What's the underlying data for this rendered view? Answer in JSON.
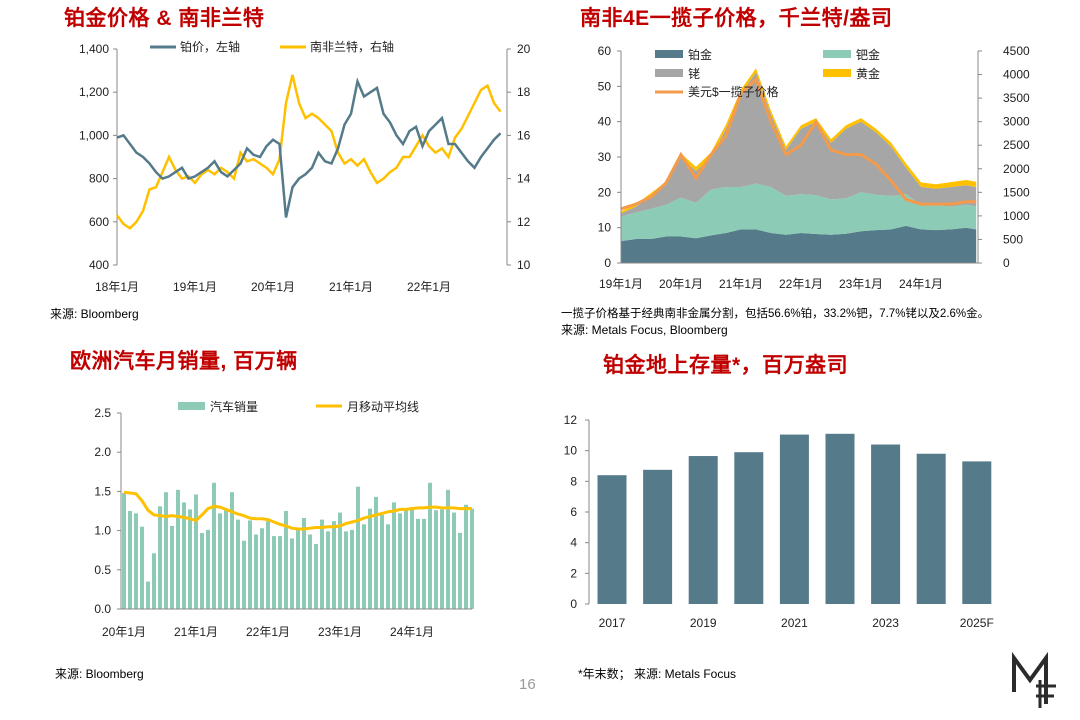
{
  "page_number": "16",
  "logo_text": "MF",
  "colors": {
    "title": "#C00000",
    "platinum": "#557A8A",
    "palladium": "#8CCBB5",
    "rhodium": "#A6A6A6",
    "gold": "#FFC000",
    "basket_usd": "#F39B4B",
    "rand": "#FFC000",
    "car_sales": "#8ECBB6",
    "ma": "#FFC000",
    "stocks": "#557A8A"
  },
  "chart_data": [
    {
      "id": "pt_vs_zar",
      "type": "line",
      "title": "铂金价格 & 南非兰特",
      "source": "来源: Bloomberg",
      "x_start": "2018-01",
      "x_step": "month",
      "x_ticks": [
        "18年1月",
        "19年1月",
        "20年1月",
        "21年1月",
        "22年1月"
      ],
      "y_left": {
        "range": [
          400,
          1400
        ],
        "ticks": [
          "400",
          "600",
          "800",
          "1,000",
          "1,200",
          "1,400"
        ]
      },
      "y_right": {
        "range": [
          10,
          20
        ],
        "ticks": [
          "10",
          "12",
          "14",
          "16",
          "18",
          "20"
        ]
      },
      "series": [
        {
          "name": "铂价，左轴",
          "axis": "left",
          "values": [
            990,
            1000,
            960,
            920,
            900,
            870,
            830,
            800,
            810,
            830,
            850,
            800,
            810,
            830,
            850,
            880,
            830,
            810,
            840,
            870,
            940,
            910,
            900,
            950,
            980,
            960,
            620,
            760,
            800,
            820,
            850,
            920,
            880,
            870,
            940,
            1050,
            1100,
            1250,
            1180,
            1200,
            1220,
            1100,
            1060,
            1000,
            960,
            1020,
            1040,
            950,
            1020,
            1050,
            1080,
            960,
            960,
            920,
            880,
            850,
            900,
            940,
            980,
            1010
          ]
        },
        {
          "name": "南非兰特，右轴",
          "axis": "right",
          "values": [
            12.3,
            11.9,
            11.7,
            12.0,
            12.5,
            13.5,
            13.6,
            14.3,
            15.0,
            14.4,
            14.0,
            14.1,
            13.8,
            14.2,
            14.4,
            14.2,
            14.5,
            14.3,
            14.0,
            15.2,
            14.8,
            14.9,
            14.7,
            14.5,
            14.2,
            14.9,
            17.5,
            18.8,
            17.5,
            16.8,
            17.0,
            16.8,
            16.5,
            16.2,
            15.2,
            14.7,
            14.9,
            14.6,
            14.9,
            14.3,
            13.8,
            14.0,
            14.3,
            14.5,
            15.0,
            15.0,
            15.5,
            16.0,
            15.5,
            15.2,
            15.4,
            15.0,
            15.9,
            16.3,
            16.9,
            17.5,
            18.1,
            18.3,
            17.5,
            17.1
          ]
        }
      ]
    },
    {
      "id": "basket_4e",
      "type": "area",
      "title": "南非4E一揽子价格，千兰特/盎司",
      "note": "一揽子价格基于经典南非金属分割，包括56.6%铂，33.2%钯，7.7%铑以及2.6%金。",
      "source": "来源: Metals Focus, Bloomberg",
      "x": [
        2019.0,
        2019.25,
        2019.5,
        2019.75,
        2020.0,
        2020.25,
        2020.5,
        2020.75,
        2021.0,
        2021.25,
        2021.5,
        2021.75,
        2022.0,
        2022.25,
        2022.5,
        2022.75,
        2023.0,
        2023.25,
        2023.5,
        2023.75,
        2024.0,
        2024.25,
        2024.5,
        2024.75,
        2024.92
      ],
      "x_ticks": [
        "19年1月",
        "20年1月",
        "21年1月",
        "22年1月",
        "23年1月",
        "24年1月"
      ],
      "y_left": {
        "range": [
          0,
          60
        ],
        "ticks": [
          "0",
          "10",
          "20",
          "30",
          "40",
          "50",
          "60"
        ]
      },
      "y_right": {
        "range": [
          0,
          4500
        ],
        "ticks": [
          "0",
          "500",
          "1000",
          "1500",
          "2000",
          "2500",
          "3000",
          "3500",
          "4000",
          "4500"
        ]
      },
      "series": [
        {
          "name": "铂金",
          "stack": true,
          "values": [
            6.2,
            6.8,
            6.8,
            7.5,
            7.5,
            7.0,
            7.8,
            8.5,
            9.5,
            9.5,
            8.5,
            8.0,
            8.5,
            8.2,
            8.0,
            8.3,
            9.0,
            9.3,
            9.5,
            10.5,
            9.5,
            9.3,
            9.5,
            10.0,
            9.5
          ]
        },
        {
          "name": "钯金",
          "stack": true,
          "values": [
            7.0,
            7.5,
            8.5,
            9.0,
            11,
            10,
            13,
            13,
            12,
            13,
            13,
            11,
            11,
            11,
            10,
            10,
            11,
            10,
            9.5,
            9,
            7,
            7,
            6.5,
            6.5,
            6.5
          ]
        },
        {
          "name": "铑",
          "stack": true,
          "values": [
            0.8,
            1.7,
            3.7,
            5.5,
            11.5,
            9,
            9.2,
            16.5,
            26.5,
            31.5,
            20.5,
            13,
            18.5,
            20.8,
            16,
            19.7,
            20,
            17.7,
            14,
            7.5,
            5,
            4.7,
            5.5,
            5.5,
            5.5
          ]
        },
        {
          "name": "黄金",
          "stack": true,
          "values": [
            0.6,
            0.7,
            0.8,
            1.0,
            1.0,
            1.2,
            1.3,
            1.2,
            1.1,
            1.1,
            1.1,
            1.0,
            1.0,
            1.0,
            1.0,
            1.0,
            1.0,
            1.0,
            1.1,
            1.2,
            1.3,
            1.3,
            1.4,
            1.5,
            1.5
          ]
        },
        {
          "name": "美元$一揽子价格",
          "axis": "right",
          "values": [
            1150,
            1250,
            1400,
            1700,
            2300,
            1800,
            2300,
            2700,
            3600,
            3900,
            3000,
            2300,
            2500,
            3000,
            2400,
            2300,
            2300,
            2100,
            1750,
            1350,
            1250,
            1250,
            1250,
            1300,
            1300
          ]
        }
      ]
    },
    {
      "id": "eu_car_sales",
      "type": "bar",
      "title": "欧洲汽车月销量, 百万辆",
      "source": "来源: Bloomberg",
      "x_start": "2020-01",
      "x_ticks": [
        "20年1月",
        "21年1月",
        "22年1月",
        "23年1月",
        "24年1月"
      ],
      "y": {
        "range": [
          0,
          2.5
        ],
        "ticks": [
          "0.0",
          "0.5",
          "1.0",
          "1.5",
          "2.0",
          "2.5"
        ]
      },
      "series": [
        {
          "name": "汽车销量",
          "type": "bar",
          "values": [
            1.48,
            1.25,
            1.22,
            1.05,
            0.35,
            0.71,
            1.31,
            1.49,
            1.06,
            1.52,
            1.36,
            1.27,
            1.46,
            0.97,
            1.01,
            1.61,
            1.22,
            1.28,
            1.49,
            1.14,
            0.87,
            1.13,
            0.95,
            1.03,
            1.12,
            0.93,
            0.93,
            1.25,
            0.9,
            1.03,
            1.16,
            0.95,
            0.83,
            1.14,
            0.99,
            1.12,
            1.23,
            0.99,
            1.01,
            1.56,
            1.08,
            1.28,
            1.43,
            1.2,
            1.08,
            1.36,
            1.22,
            1.28,
            1.3,
            1.15,
            1.15,
            1.61,
            1.26,
            1.27,
            1.52,
            1.23,
            0.97,
            1.33,
            1.28
          ]
        },
        {
          "name": "月移动平均线",
          "type": "line",
          "values": [
            1.49,
            1.48,
            1.47,
            1.38,
            1.26,
            1.2,
            1.19,
            1.18,
            1.19,
            1.18,
            1.17,
            1.15,
            1.13,
            1.2,
            1.28,
            1.31,
            1.3,
            1.27,
            1.24,
            1.21,
            1.19,
            1.16,
            1.15,
            1.15,
            1.14,
            1.11,
            1.08,
            1.06,
            1.03,
            1.02,
            1.02,
            1.03,
            1.04,
            1.04,
            1.05,
            1.05,
            1.06,
            1.09,
            1.11,
            1.13,
            1.16,
            1.18,
            1.2,
            1.22,
            1.24,
            1.25,
            1.27,
            1.27,
            1.28,
            1.29,
            1.29,
            1.3,
            1.3,
            1.29,
            1.29,
            1.29,
            1.28,
            1.28,
            1.28
          ]
        }
      ]
    },
    {
      "id": "pt_stocks",
      "type": "bar",
      "title": "铂金地上存量*，百万盎司",
      "source": "*年末数；  来源: Metals Focus",
      "categories": [
        "2017",
        "",
        "2019",
        "",
        "2021",
        "",
        "2023",
        "",
        "2025F"
      ],
      "values": [
        8.4,
        8.75,
        9.65,
        9.9,
        11.05,
        11.1,
        10.4,
        9.8,
        9.3
      ],
      "y": {
        "range": [
          0,
          12
        ],
        "ticks": [
          "0",
          "2",
          "4",
          "6",
          "8",
          "10",
          "12"
        ]
      }
    }
  ]
}
